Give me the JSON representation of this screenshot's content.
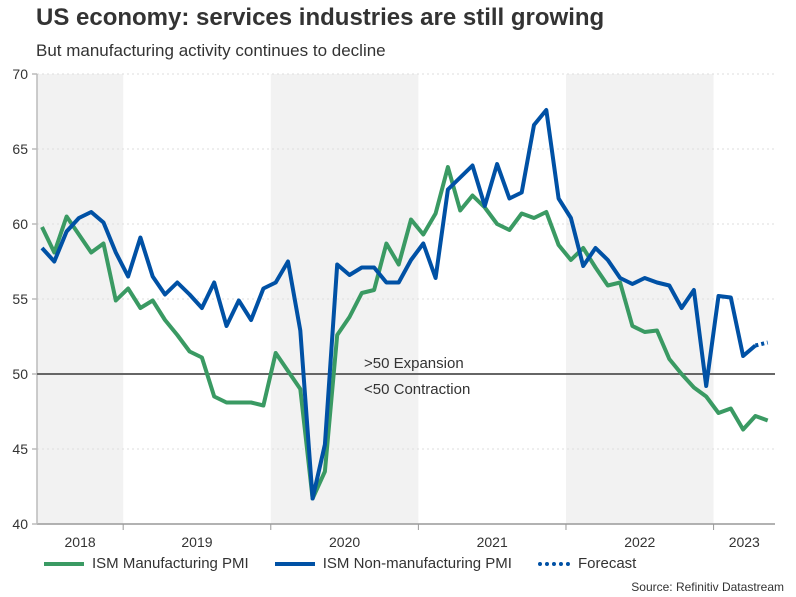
{
  "title": "US economy: services industries are still growing",
  "subtitle": "But manufacturing activity continues to decline",
  "source": "Source: Refinitiv Datastream",
  "chart_data": {
    "type": "line",
    "x_start": "2018-06",
    "x_frequency": "monthly",
    "year_labels": [
      "2018",
      "2019",
      "2020",
      "2021",
      "2022",
      "2023"
    ],
    "shaded_years": [
      "2018",
      "2020",
      "2022"
    ],
    "ylim": [
      40,
      70
    ],
    "yticks": [
      40,
      45,
      50,
      55,
      60,
      65,
      70
    ],
    "grid": true,
    "reference_line": {
      "value": 50,
      "label_above": ">50 Expansion",
      "label_below": "<50 Contraction"
    },
    "legend_placement": "bottom",
    "series": [
      {
        "name": "ISM Manufacturing PMI",
        "color": "#3a9a63",
        "values": [
          59.8,
          58.1,
          60.5,
          59.3,
          58.1,
          58.7,
          54.9,
          55.7,
          54.4,
          54.9,
          53.6,
          52.6,
          51.5,
          51.1,
          48.5,
          48.1,
          48.1,
          48.1,
          47.9,
          51.4,
          50.2,
          49.0,
          41.7,
          43.5,
          52.6,
          53.8,
          55.4,
          55.6,
          58.7,
          57.3,
          60.3,
          59.3,
          60.7,
          63.8,
          60.9,
          61.9,
          61.1,
          60.0,
          59.6,
          60.7,
          60.4,
          60.8,
          58.6,
          57.6,
          58.4,
          57.1,
          55.9,
          56.1,
          53.2,
          52.8,
          52.9,
          51.0,
          50.0,
          49.1,
          48.5,
          47.4,
          47.7,
          46.3,
          47.2,
          46.9
        ]
      },
      {
        "name": "ISM Non-manufacturing PMI",
        "color": "#0051a5",
        "values": [
          58.4,
          57.5,
          59.5,
          60.4,
          60.8,
          60.1,
          58.1,
          56.5,
          59.1,
          56.5,
          55.3,
          56.1,
          55.3,
          54.4,
          56.1,
          53.2,
          54.9,
          53.6,
          55.7,
          56.1,
          57.5,
          52.9,
          41.7,
          45.3,
          57.3,
          56.6,
          57.1,
          57.1,
          56.1,
          56.1,
          57.6,
          58.7,
          56.4,
          62.3,
          63.1,
          63.9,
          61.2,
          64.0,
          61.7,
          62.1,
          66.6,
          67.6,
          61.7,
          60.4,
          57.2,
          58.4,
          57.6,
          56.4,
          56.0,
          56.4,
          56.1,
          55.9,
          54.4,
          55.6,
          49.2,
          55.2,
          55.1,
          51.2,
          51.9
        ]
      },
      {
        "name": "Forecast",
        "color": "#0051a5",
        "style": "dotted",
        "start_index": 58,
        "values": [
          51.9,
          52.1
        ]
      }
    ]
  }
}
